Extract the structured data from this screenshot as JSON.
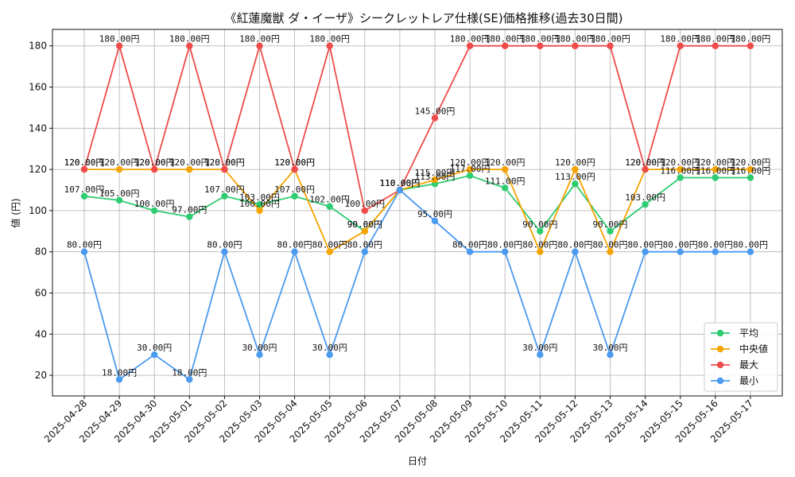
{
  "chart_data": {
    "type": "line",
    "title": "《紅蓮魔獣 ダ・イーザ》シークレットレア仕様(SE)価格推移(過去30日間)",
    "xlabel": "日付",
    "ylabel": "値 (円)",
    "ylim": [
      10,
      188
    ],
    "yticks": [
      20,
      40,
      60,
      80,
      100,
      120,
      140,
      160,
      180
    ],
    "grid": true,
    "legend_position": "bottom-right",
    "label_suffix": "円",
    "categories": [
      "2025-04-28",
      "2025-04-29",
      "2025-04-30",
      "2025-05-01",
      "2025-05-02",
      "2025-05-03",
      "2025-05-04",
      "2025-05-05",
      "2025-05-06",
      "2025-05-07",
      "2025-05-08",
      "2025-05-09",
      "2025-05-10",
      "2025-05-11",
      "2025-05-12",
      "2025-05-13",
      "2025-05-14",
      "2025-05-15",
      "2025-05-16",
      "2025-05-17"
    ],
    "series": [
      {
        "name": "平均",
        "color": "#2ecc71",
        "values": [
          107,
          105,
          100,
          97,
          107,
          103,
          107,
          102,
          90,
          110,
          113,
          117,
          111,
          90,
          113,
          90,
          103,
          116,
          116,
          116
        ]
      },
      {
        "name": "中央値",
        "color": "#f5a300",
        "values": [
          120,
          120,
          120,
          120,
          120,
          100,
          120,
          80,
          90,
          110,
          115,
          120,
          120,
          80,
          120,
          80,
          120,
          120,
          120,
          120
        ]
      },
      {
        "name": "最大",
        "color": "#ef4b4b",
        "values": [
          120,
          180,
          120,
          180,
          120,
          180,
          120,
          180,
          100,
          110,
          145,
          180,
          180,
          180,
          180,
          180,
          120,
          180,
          180,
          180
        ]
      },
      {
        "name": "最小",
        "color": "#4a9af0",
        "values": [
          80,
          18,
          30,
          18,
          80,
          30,
          80,
          30,
          80,
          110,
          95,
          80,
          80,
          30,
          80,
          30,
          80,
          80,
          80,
          80
        ]
      }
    ]
  }
}
